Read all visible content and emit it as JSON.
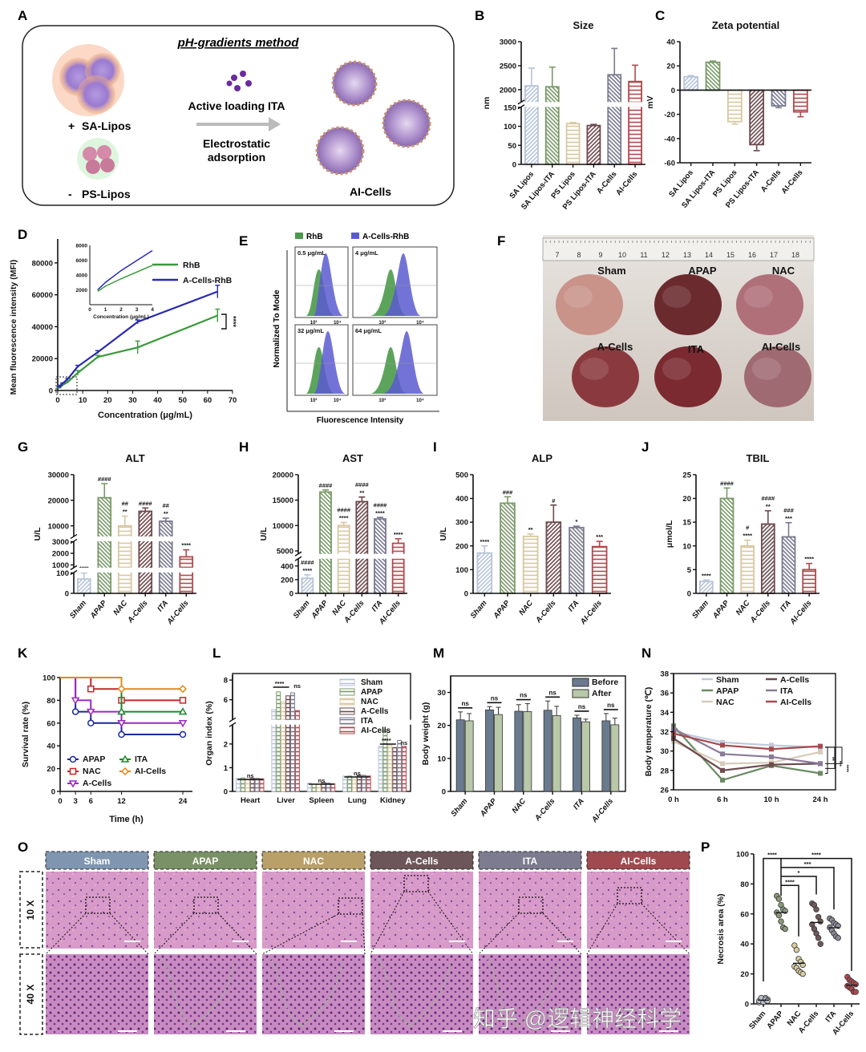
{
  "panels": {
    "A": "A",
    "B": "B",
    "C": "C",
    "D": "D",
    "E": "E",
    "F": "F",
    "G": "G",
    "H": "H",
    "I": "I",
    "J": "J",
    "K": "K",
    "L": "L",
    "M": "M",
    "N": "N",
    "O": "O",
    "P": "P"
  },
  "schematic": {
    "title": "pH-gradients method",
    "sa_label": "SA-Lipos",
    "sa_sign": "+",
    "ps_label": "PS-Lipos",
    "ps_sign": "-",
    "step1": "Active loading ITA",
    "step2_line1": "Electrostatic",
    "step2_line2": "adsorption",
    "product": "AI-Cells"
  },
  "flow": {
    "legend": [
      "RhB",
      "A-Cells-RhB"
    ],
    "legend_colors": [
      "#4a9a4a",
      "#5a5ad0"
    ],
    "ylabel": "Normalized To Mode",
    "xlabel": "Fluorescence Intensity",
    "concentrations": [
      "0.5 μg/mL",
      "4 μg/mL",
      "32 μg/mL",
      "64 μg/mL"
    ],
    "tick_labels": [
      "10³",
      "10⁴"
    ]
  },
  "photo": {
    "ruler": [
      "7",
      "8",
      "9",
      "10",
      "11",
      "12",
      "13",
      "14",
      "15",
      "16",
      "17",
      "18"
    ],
    "groups": [
      "Sham",
      "APAP",
      "NAC",
      "A-Cells",
      "ITA",
      "AI-Cells"
    ]
  },
  "histology": {
    "groups": [
      "Sham",
      "APAP",
      "NAC",
      "A-Cells",
      "ITA",
      "AI-Cells"
    ],
    "header_colors": [
      "#7f95b0",
      "#7a9066",
      "#b9a06a",
      "#6d5659",
      "#7d7b8f",
      "#a04a4f"
    ],
    "magnifications": [
      "10 X",
      "40 X"
    ]
  },
  "watermark": "知乎 @逻辑神经科学",
  "chart_data": [
    {
      "panel": "B",
      "type": "bar",
      "title": "Size",
      "ylabel": "nm",
      "categories": [
        "SA Lipos",
        "SA Lipos-ITA",
        "PS Lipos",
        "PS Lipos-ITA",
        "A-Cells",
        "AI-Cells"
      ],
      "values": [
        2080,
        2060,
        107,
        102,
        2310,
        2170
      ],
      "errors": [
        370,
        410,
        3,
        3,
        550,
        340
      ],
      "y_segments": [
        [
          0,
          150
        ],
        [
          1750,
          3000
        ]
      ],
      "yticks": [
        0,
        50,
        100,
        150,
        2000,
        2500,
        3000
      ],
      "colors": [
        "#b8c4d8",
        "#7a9a6a",
        "#d8c8a0",
        "#6e4a4e",
        "#7a7a90",
        "#b04a4e"
      ],
      "hatch": [
        "diag",
        "diag2",
        "horiz",
        "diag",
        "diag2",
        "horiz"
      ]
    },
    {
      "panel": "C",
      "type": "bar",
      "title": "Zeta potential",
      "ylabel": "mV",
      "categories": [
        "SA Lipos",
        "SA Lipos-ITA",
        "PS Lipos",
        "PS Lipos-ITA",
        "A-Cells",
        "AI-Cells"
      ],
      "values": [
        11,
        23,
        -26,
        -45,
        -13,
        -18
      ],
      "errors": [
        1,
        1,
        2,
        5,
        1.5,
        4
      ],
      "ylim": [
        -60,
        40
      ],
      "yticks": [
        -60,
        -40,
        -20,
        0,
        20,
        40
      ],
      "colors": [
        "#b8c4d8",
        "#7a9a6a",
        "#d8c8a0",
        "#6e4a4e",
        "#7a7a90",
        "#b04a4e"
      ],
      "hatch": [
        "diag",
        "diag2",
        "horiz",
        "diag",
        "diag2",
        "horiz"
      ]
    },
    {
      "panel": "D",
      "type": "line",
      "xlabel": "Concentration (μg/mL)",
      "ylabel": "Mean fluorescence intensity (MFI)",
      "x": [
        0.5,
        1,
        2,
        4,
        8,
        16,
        32,
        64
      ],
      "series": [
        {
          "name": "RhB",
          "color": "#3a9a3a",
          "values": [
            1500,
            2500,
            3500,
            5300,
            11000,
            21000,
            27000,
            47000
          ],
          "errors": [
            200,
            300,
            500,
            600,
            1500,
            1000,
            4000,
            4000
          ]
        },
        {
          "name": "A-Cells-RhB",
          "color": "#2a2ab0",
          "values": [
            2000,
            3000,
            4500,
            7200,
            15000,
            24000,
            43000,
            62000
          ],
          "errors": [
            200,
            300,
            300,
            400,
            800,
            1000,
            1200,
            4000
          ]
        }
      ],
      "xlim": [
        0,
        70
      ],
      "xticks": [
        0,
        10,
        20,
        30,
        40,
        50,
        60,
        70
      ],
      "ylim": [
        0,
        95000
      ],
      "yticks": [
        0,
        20000,
        40000,
        60000,
        80000
      ],
      "significance": "****",
      "inset": {
        "xlabel": "Concentration (μg/mL)",
        "xlim": [
          0,
          4
        ],
        "xticks": [
          0,
          1,
          2,
          3,
          4
        ],
        "ylim": [
          0,
          8000
        ],
        "yticks": [
          2000,
          4000,
          6000,
          8000
        ],
        "x": [
          0.5,
          1,
          2,
          4
        ],
        "series": [
          {
            "name": "RhB",
            "values": [
              1800,
              2500,
              3500,
              5300
            ]
          },
          {
            "name": "A-Cells-RhB",
            "values": [
              2000,
              3000,
              4600,
              7300
            ]
          }
        ]
      }
    },
    {
      "panel": "G",
      "type": "bar",
      "title": "ALT",
      "ylabel": "U/L",
      "categories": [
        "Sham",
        "APAP",
        "NAC",
        "A-Cells",
        "ITA",
        "AI-Cells"
      ],
      "values": [
        70,
        21000,
        10000,
        15700,
        11800,
        1700
      ],
      "errors": [
        30,
        5500,
        3800,
        1300,
        1200,
        600
      ],
      "y_segments": [
        [
          0,
          100
        ],
        [
          800,
          3000
        ],
        [
          6000,
          30000
        ]
      ],
      "yticks": [
        0,
        100,
        1000,
        2000,
        3000,
        10000,
        20000,
        30000
      ],
      "annotations": [
        [
          "****"
        ],
        [
          "####"
        ],
        [
          "##",
          "**"
        ],
        [
          "####"
        ],
        [
          "##",
          "**"
        ],
        [
          "****"
        ]
      ],
      "colors": [
        "#b8c4d8",
        "#7a9a6a",
        "#d8c8a0",
        "#6e4a4e",
        "#7a7a90",
        "#b04a4e"
      ],
      "hatch": [
        "diag",
        "diag2",
        "horiz",
        "diag",
        "diag2",
        "horiz"
      ]
    },
    {
      "panel": "H",
      "type": "bar",
      "title": "AST",
      "ylabel": "U/L",
      "categories": [
        "Sham",
        "APAP",
        "NAC",
        "A-Cells",
        "ITA",
        "AI-Cells"
      ],
      "values": [
        220,
        16600,
        10000,
        14700,
        11300,
        6500
      ],
      "errors": [
        50,
        400,
        600,
        900,
        300,
        900
      ],
      "y_segments": [
        [
          0,
          500
        ],
        [
          4500,
          20000
        ]
      ],
      "yticks": [
        0,
        200,
        400,
        5000,
        10000,
        15000,
        20000
      ],
      "annotations": [
        [
          "####",
          "****"
        ],
        [
          "####"
        ],
        [
          "####",
          "****"
        ],
        [
          "####",
          "**"
        ],
        [
          "####",
          "****"
        ],
        [
          "****"
        ]
      ],
      "colors": [
        "#b8c4d8",
        "#7a9a6a",
        "#d8c8a0",
        "#6e4a4e",
        "#7a7a90",
        "#b04a4e"
      ],
      "hatch": [
        "diag",
        "diag2",
        "horiz",
        "diag",
        "diag2",
        "horiz"
      ]
    },
    {
      "panel": "I",
      "type": "bar",
      "title": "ALP",
      "ylabel": "U/L",
      "categories": [
        "Sham",
        "APAP",
        "NAC",
        "A-Cells",
        "ITA",
        "AI-Cells"
      ],
      "values": [
        170,
        380,
        240,
        300,
        277,
        197
      ],
      "errors": [
        30,
        27,
        10,
        72,
        6,
        22
      ],
      "ylim": [
        0,
        500
      ],
      "yticks": [
        0,
        100,
        200,
        300,
        400,
        500
      ],
      "annotations": [
        [
          "****"
        ],
        [
          "###"
        ],
        [
          "**"
        ],
        [
          "#"
        ],
        [
          "*"
        ],
        [
          "***"
        ]
      ],
      "colors": [
        "#b8c4d8",
        "#7a9a6a",
        "#d8c8a0",
        "#6e4a4e",
        "#7a7a90",
        "#b04a4e"
      ],
      "hatch": [
        "diag",
        "diag2",
        "horiz",
        "diag",
        "diag2",
        "horiz"
      ]
    },
    {
      "panel": "J",
      "type": "bar",
      "title": "TBIL",
      "ylabel": "μmol/L",
      "categories": [
        "Sham",
        "APAP",
        "NAC",
        "A-Cells",
        "ITA",
        "AI-Cells"
      ],
      "values": [
        2.5,
        20,
        10,
        14.6,
        11.9,
        5
      ],
      "errors": [
        0.3,
        2.2,
        1.2,
        2.8,
        3,
        1.3
      ],
      "ylim": [
        0,
        25
      ],
      "yticks": [
        0,
        5,
        10,
        15,
        20,
        25
      ],
      "annotations": [
        [
          "****"
        ],
        [
          "####"
        ],
        [
          "#",
          "****"
        ],
        [
          "####",
          "**"
        ],
        [
          "###",
          "***"
        ],
        [
          "****"
        ]
      ],
      "colors": [
        "#b8c4d8",
        "#7a9a6a",
        "#d8c8a0",
        "#6e4a4e",
        "#7a7a90",
        "#b04a4e"
      ],
      "hatch": [
        "diag",
        "diag2",
        "horiz",
        "diag",
        "diag2",
        "horiz"
      ]
    },
    {
      "panel": "K",
      "type": "line",
      "xlabel": "Time (h)",
      "ylabel": "Survival rate (%)",
      "xlim": [
        0,
        24
      ],
      "xticks": [
        0,
        3,
        6,
        12,
        24
      ],
      "ylim": [
        0,
        100
      ],
      "yticks": [
        0,
        20,
        40,
        60,
        80,
        100
      ],
      "series": [
        {
          "name": "APAP",
          "color": "#1a2a9a",
          "marker": "circle",
          "steps": [
            [
              0,
              100
            ],
            [
              3,
              70
            ],
            [
              6,
              60
            ],
            [
              12,
              50
            ],
            [
              24,
              50
            ]
          ]
        },
        {
          "name": "NAC",
          "color": "#c02a2a",
          "marker": "square",
          "steps": [
            [
              0,
              100
            ],
            [
              6,
              90
            ],
            [
              12,
              80
            ],
            [
              24,
              80
            ]
          ]
        },
        {
          "name": "A-Cells",
          "color": "#9a2ac0",
          "marker": "triangle-down",
          "steps": [
            [
              0,
              100
            ],
            [
              3,
              80
            ],
            [
              6,
              70
            ],
            [
              12,
              60
            ],
            [
              24,
              60
            ]
          ]
        },
        {
          "name": "ITA",
          "color": "#1a8a2a",
          "marker": "triangle",
          "steps": [
            [
              0,
              100
            ],
            [
              12,
              70
            ],
            [
              24,
              70
            ]
          ]
        },
        {
          "name": "AI-Cells",
          "color": "#e08a1a",
          "marker": "diamond",
          "steps": [
            [
              0,
              100
            ],
            [
              12,
              90
            ],
            [
              24,
              90
            ]
          ]
        }
      ]
    },
    {
      "panel": "L",
      "type": "bar",
      "ylabel": "Organ index (%)",
      "categories": [
        "Heart",
        "Liver",
        "Spleen",
        "Lung",
        "Kidney"
      ],
      "y_segments": [
        [
          0,
          2.8
        ],
        [
          4,
          8.5
        ]
      ],
      "yticks": [
        0,
        1,
        2,
        6,
        8
      ],
      "series": [
        {
          "name": "Sham",
          "color": "#b8c4d8",
          "values": [
            0.55,
            5.0,
            0.35,
            0.65,
            1.9
          ]
        },
        {
          "name": "APAP",
          "color": "#7a9a6a",
          "values": [
            0.57,
            6.8,
            0.3,
            0.65,
            2.6
          ]
        },
        {
          "name": "NAC",
          "color": "#d8c8a0",
          "values": [
            0.52,
            5.8,
            0.3,
            0.6,
            1.95
          ]
        },
        {
          "name": "A-Cells",
          "color": "#6e4a4e",
          "values": [
            0.55,
            6.4,
            0.38,
            0.68,
            1.85
          ]
        },
        {
          "name": "ITA",
          "color": "#7a7a90",
          "values": [
            0.55,
            6.7,
            0.35,
            0.68,
            2.15
          ]
        },
        {
          "name": "AI-Cells",
          "color": "#b04a4e",
          "values": [
            0.53,
            4.9,
            0.32,
            0.65,
            1.9
          ]
        }
      ],
      "significance": [
        [
          "ns"
        ],
        [
          "****",
          "ns"
        ],
        [
          "ns"
        ],
        [
          "ns"
        ],
        [
          "****",
          "ns"
        ]
      ]
    },
    {
      "panel": "M",
      "type": "bar",
      "ylabel": "Body weight (g)",
      "categories": [
        "Sham",
        "APAP",
        "NAC",
        "A-Cells",
        "ITA",
        "AI-Cells"
      ],
      "ylim": [
        0,
        35
      ],
      "yticks": [
        0,
        10,
        20,
        30
      ],
      "series": [
        {
          "name": "Before",
          "color": "#6a7a8e",
          "values": [
            21.7,
            24.7,
            24.3,
            24.6,
            22.3,
            21.4
          ],
          "errors": [
            2.4,
            1,
            2,
            2.8,
            0.8,
            2.2
          ]
        },
        {
          "name": "After",
          "color": "#b8c8a8",
          "values": [
            21.4,
            23.3,
            24.2,
            23.0,
            21.1,
            20.2
          ],
          "errors": [
            2.2,
            2.2,
            2.4,
            2.8,
            0.8,
            2
          ]
        }
      ],
      "significance": [
        "ns",
        "ns",
        "ns",
        "ns",
        "ns",
        "ns"
      ]
    },
    {
      "panel": "N",
      "type": "line",
      "ylabel": "Body temperature (℃)",
      "categories": [
        "0 h",
        "6 h",
        "10 h",
        "24 h"
      ],
      "ylim": [
        26,
        38
      ],
      "yticks": [
        26,
        28,
        30,
        32,
        34,
        36,
        38
      ],
      "series": [
        {
          "name": "Sham",
          "color": "#c0c8dc",
          "values": [
            32.0,
            30.9,
            30.6,
            30.4
          ]
        },
        {
          "name": "APAP",
          "color": "#6a8a62",
          "values": [
            32.6,
            27.0,
            28.5,
            27.7
          ]
        },
        {
          "name": "NAC",
          "color": "#d8cbb8",
          "values": [
            31.0,
            28.7,
            28.8,
            29.9
          ]
        },
        {
          "name": "A-Cells",
          "color": "#6e4a4e",
          "values": [
            31.3,
            28.0,
            28.6,
            28.7
          ]
        },
        {
          "name": "ITA",
          "color": "#8a7a98",
          "values": [
            32.3,
            29.7,
            29.4,
            28.7
          ]
        },
        {
          "name": "AI-Cells",
          "color": "#a84a4e",
          "values": [
            31.8,
            30.6,
            30.2,
            30.5
          ]
        }
      ],
      "significance": [
        "**",
        "***",
        "****"
      ]
    },
    {
      "panel": "P",
      "type": "scatter",
      "ylabel": "Necrosis area (%)",
      "categories": [
        "Sham",
        "APAP",
        "NAC",
        "A-Cells",
        "ITA",
        "AI-Cells"
      ],
      "ylim": [
        0,
        100
      ],
      "yticks": [
        0,
        20,
        40,
        60,
        80,
        100
      ],
      "colors": [
        "#b8c0cc",
        "#8a9a7a",
        "#d8cca0",
        "#6e5a5a",
        "#8a8a98",
        "#b04a4e"
      ],
      "points": [
        [
          1,
          2,
          3,
          4,
          3,
          2,
          4,
          1,
          3,
          2
        ],
        [
          72,
          70,
          66,
          63,
          62,
          61,
          59,
          55,
          51,
          50
        ],
        [
          39,
          36,
          30,
          28,
          26,
          25,
          24,
          22,
          21,
          20
        ],
        [
          67,
          66,
          63,
          58,
          55,
          53,
          50,
          47,
          44,
          40
        ],
        [
          57,
          56,
          54,
          53,
          52,
          51,
          49,
          47,
          45,
          44
        ],
        [
          18,
          16,
          15,
          14,
          13,
          12,
          11,
          10,
          8,
          8
        ]
      ],
      "comparisons": [
        {
          "groups": [
            "Sham",
            "APAP"
          ],
          "label": "****"
        },
        {
          "groups": [
            "APAP",
            "AI-Cells"
          ],
          "label": "****"
        },
        {
          "groups": [
            "APAP",
            "ITA"
          ],
          "label": "***"
        },
        {
          "groups": [
            "APAP",
            "A-Cells"
          ],
          "label": "*"
        },
        {
          "groups": [
            "APAP",
            "NAC"
          ],
          "label": "****"
        }
      ]
    }
  ]
}
